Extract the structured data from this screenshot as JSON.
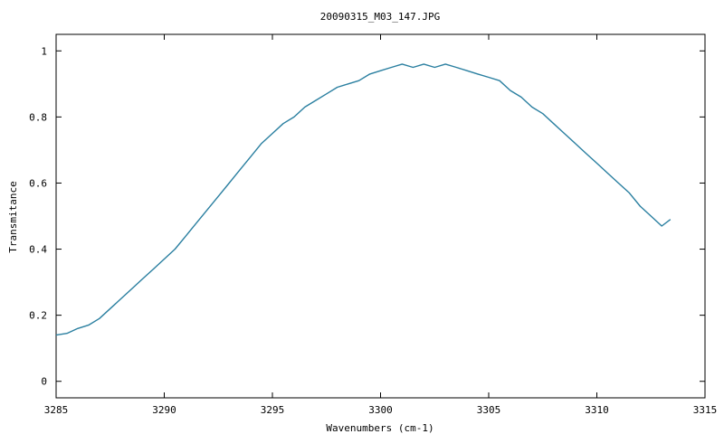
{
  "chart_data": {
    "type": "line",
    "title": "20090315_M03_147.JPG",
    "xlabel": "Wavenumbers (cm-1)",
    "ylabel": "Transmitance",
    "xlim": [
      3285,
      3315
    ],
    "ylim": [
      -0.05,
      1.05
    ],
    "xticks": [
      3285,
      3290,
      3295,
      3300,
      3305,
      3310,
      3315
    ],
    "yticks": [
      0,
      0.2,
      0.4,
      0.6,
      0.8,
      1
    ],
    "ytick_labels": [
      "0",
      "0.2",
      "0.4",
      "0.6",
      "0.8",
      "1"
    ],
    "grid": false,
    "colors": {
      "line": "#2a7fa0",
      "axis": "#000000",
      "background": "#ffffff"
    },
    "series": [
      {
        "x": [
          3285.0,
          3285.5,
          3286.0,
          3286.5,
          3287.0,
          3287.5,
          3288.0,
          3288.5,
          3289.0,
          3289.5,
          3290.0,
          3290.5,
          3291.0,
          3291.5,
          3292.0,
          3292.5,
          3293.0,
          3293.5,
          3294.0,
          3294.5,
          3295.0,
          3295.5,
          3296.0,
          3296.5,
          3297.0,
          3297.5,
          3298.0,
          3298.5,
          3299.0,
          3299.5,
          3300.0,
          3300.5,
          3301.0,
          3301.5,
          3302.0,
          3302.5,
          3303.0,
          3303.5,
          3304.0,
          3304.5,
          3305.0,
          3305.5,
          3306.0,
          3306.5,
          3307.0,
          3307.5,
          3308.0,
          3308.5,
          3309.0,
          3309.5,
          3310.0,
          3310.5,
          3311.0,
          3311.5,
          3312.0,
          3312.5,
          3313.0,
          3313.4
        ],
        "y": [
          0.14,
          0.145,
          0.16,
          0.17,
          0.19,
          0.22,
          0.25,
          0.28,
          0.31,
          0.34,
          0.37,
          0.4,
          0.44,
          0.48,
          0.52,
          0.56,
          0.6,
          0.64,
          0.68,
          0.72,
          0.75,
          0.78,
          0.8,
          0.83,
          0.85,
          0.87,
          0.89,
          0.9,
          0.91,
          0.93,
          0.94,
          0.95,
          0.96,
          0.95,
          0.96,
          0.95,
          0.96,
          0.95,
          0.94,
          0.93,
          0.92,
          0.91,
          0.88,
          0.86,
          0.83,
          0.81,
          0.78,
          0.75,
          0.72,
          0.69,
          0.66,
          0.63,
          0.6,
          0.57,
          0.53,
          0.5,
          0.47,
          0.49
        ]
      }
    ]
  }
}
